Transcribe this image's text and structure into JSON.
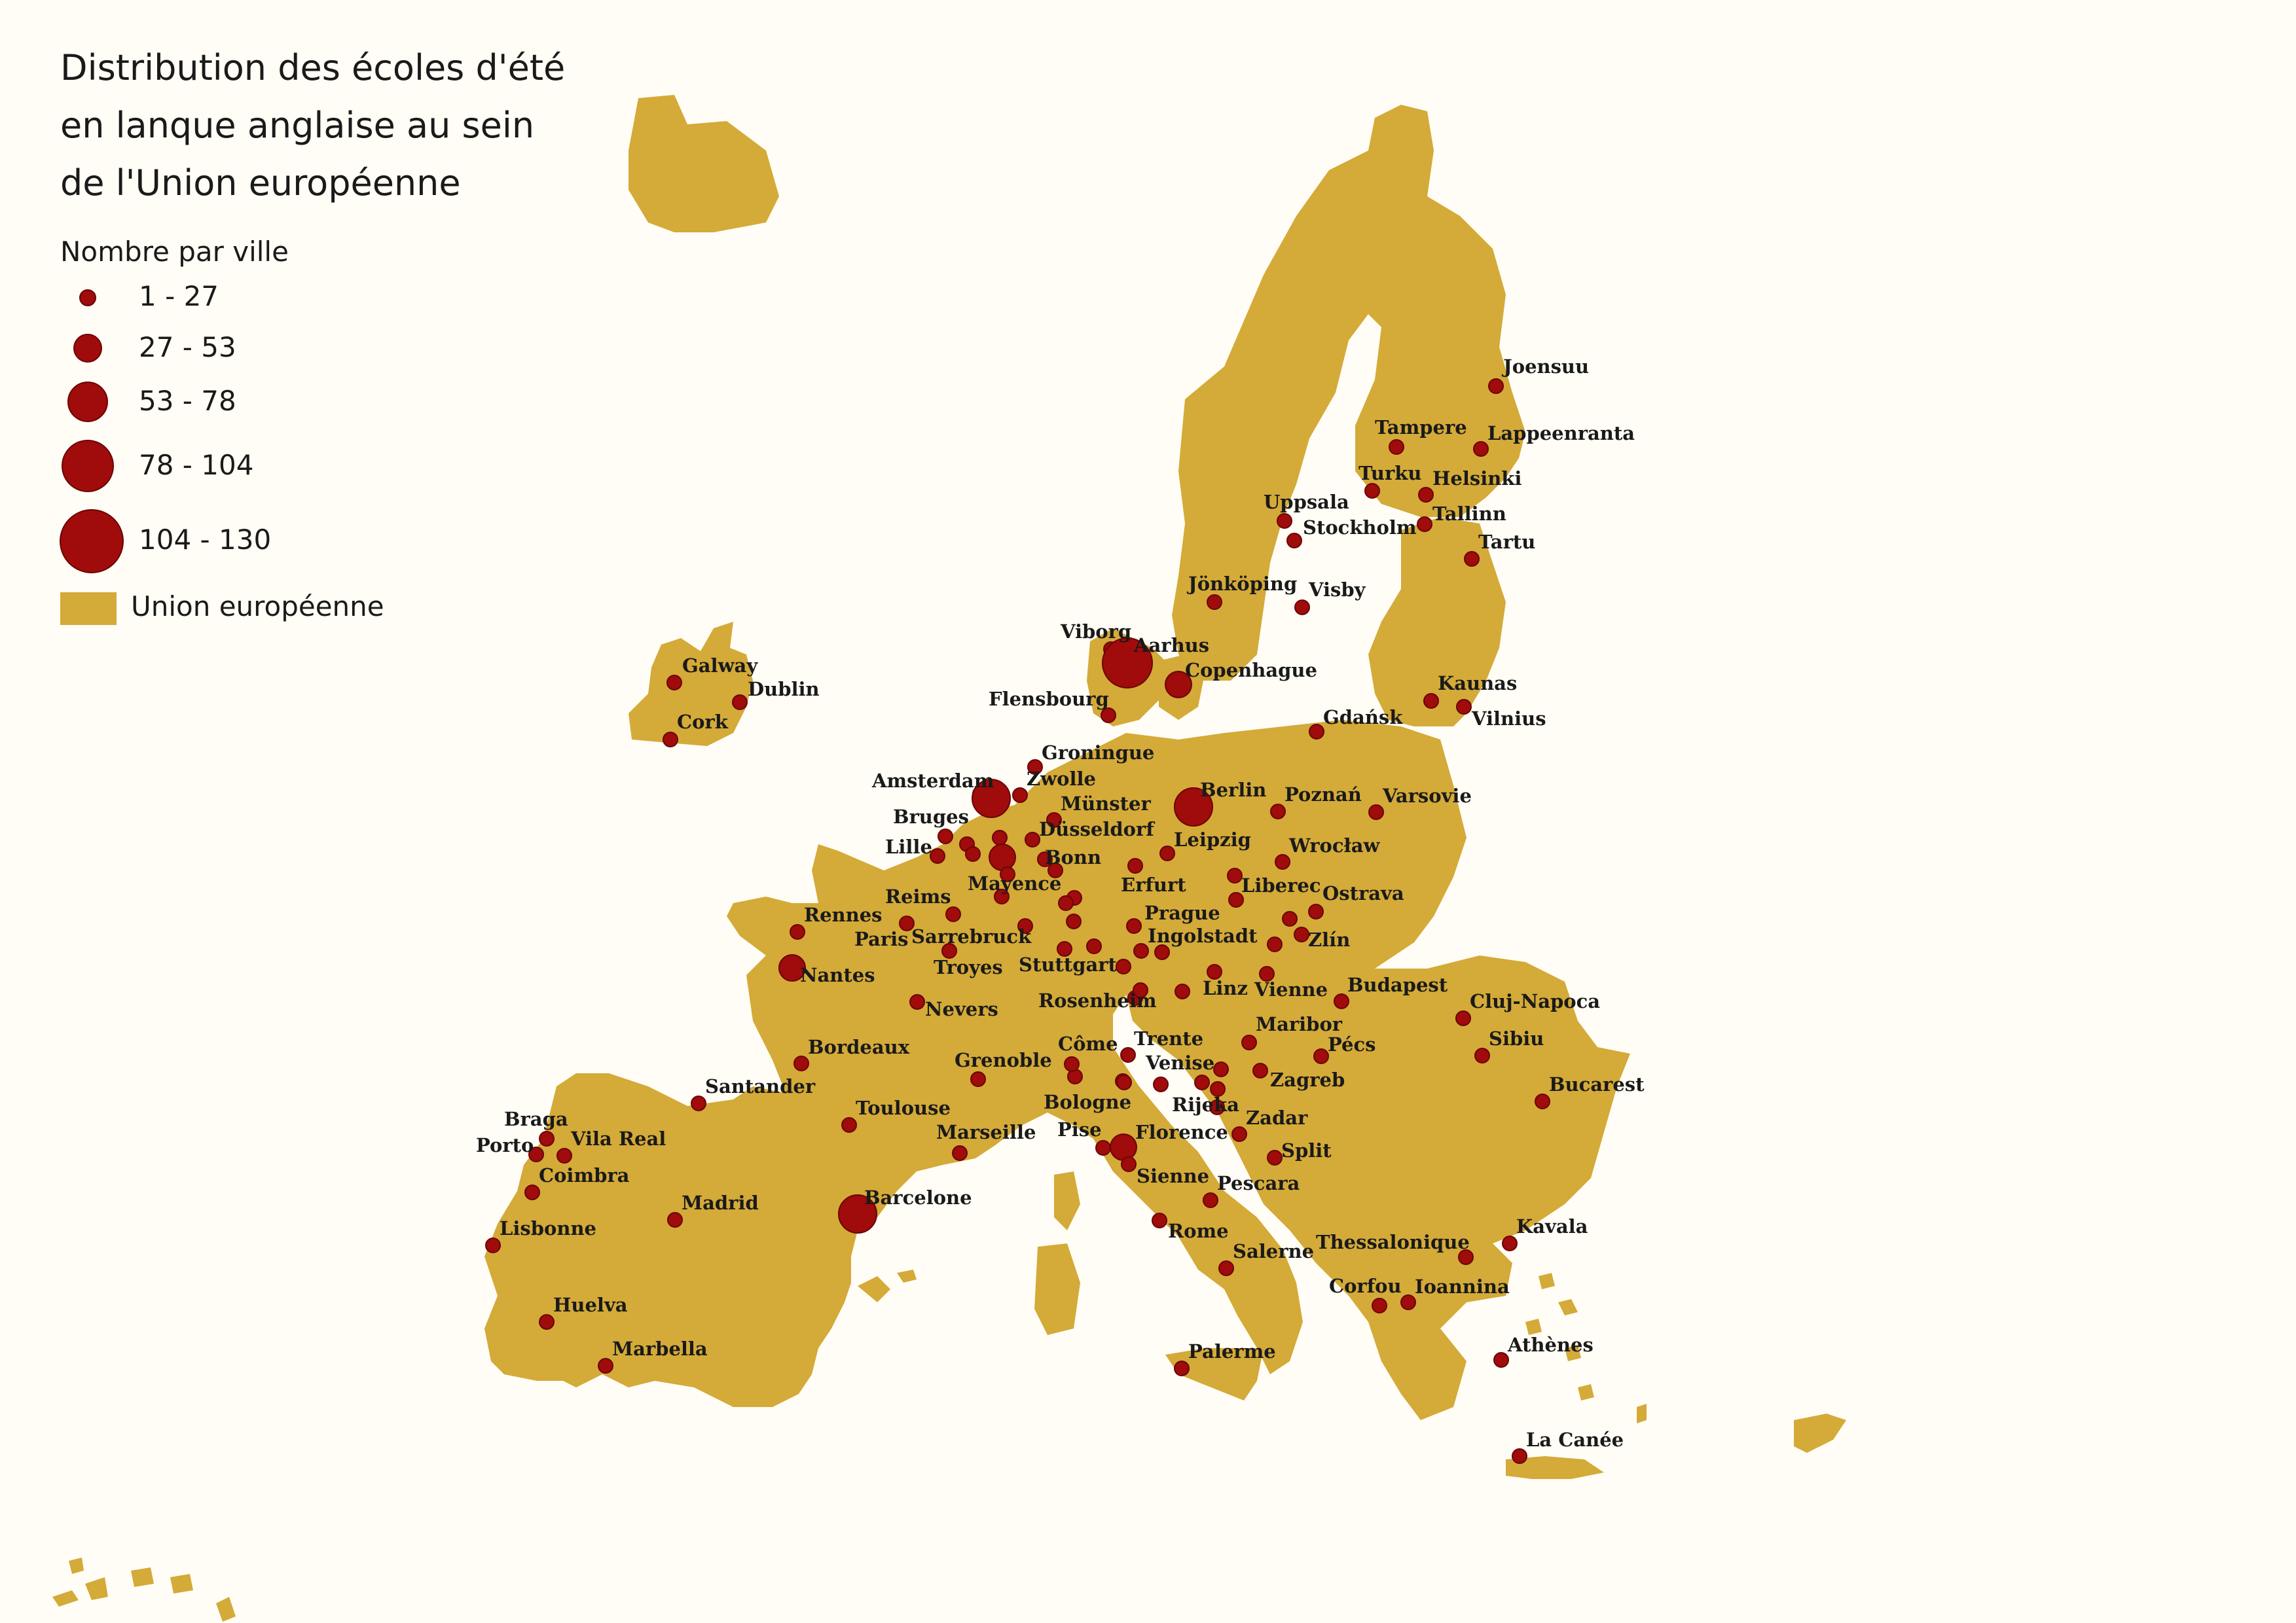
{
  "title_lines": [
    "Distribution des écoles d'été",
    "en lanque anglaise au sein",
    "de l'Union européenne"
  ],
  "legend": {
    "title": "Nombre par ville",
    "classes": [
      "1 - 27",
      "27 - 53",
      "53 - 78",
      "78 - 104",
      "104 - 130"
    ],
    "area_label": "Union européenne"
  },
  "colors": {
    "land": "#d4aa38",
    "point": "#a00b0b",
    "point_stroke": "#6a0606",
    "background": "#fffdf5"
  },
  "cities": [
    {
      "name": "Joensuu",
      "class": 0
    },
    {
      "name": "Tampere",
      "class": 0
    },
    {
      "name": "Lappeenranta",
      "class": 0
    },
    {
      "name": "Turku",
      "class": 0
    },
    {
      "name": "Helsinki",
      "class": 0
    },
    {
      "name": "Uppsala",
      "class": 0
    },
    {
      "name": "Stockholm",
      "class": 0
    },
    {
      "name": "Tallinn",
      "class": 0
    },
    {
      "name": "Tartu",
      "class": 0
    },
    {
      "name": "Jönköping",
      "class": 0
    },
    {
      "name": "Visby",
      "class": 0
    },
    {
      "name": "Viborg",
      "class": 0
    },
    {
      "name": "Aarhus",
      "class": 3
    },
    {
      "name": "Copenhague",
      "class": 1
    },
    {
      "name": "Kaunas",
      "class": 0
    },
    {
      "name": "Vilnius",
      "class": 0
    },
    {
      "name": "Galway",
      "class": 0
    },
    {
      "name": "Dublin",
      "class": 0
    },
    {
      "name": "Cork",
      "class": 0
    },
    {
      "name": "Flensbourg",
      "class": 0
    },
    {
      "name": "Gdańsk",
      "class": 0
    },
    {
      "name": "Groningue",
      "class": 0
    },
    {
      "name": "Amsterdam",
      "class": 2
    },
    {
      "name": "Zwolle",
      "class": 0
    },
    {
      "name": "Berlin",
      "class": 2
    },
    {
      "name": "Poznań",
      "class": 0
    },
    {
      "name": "Varsovie",
      "class": 0
    },
    {
      "name": "Münster",
      "class": 0
    },
    {
      "name": "Bruges",
      "class": 0
    },
    {
      "name": "Düsseldorf",
      "class": 0
    },
    {
      "name": "Lille",
      "class": 0
    },
    {
      "name": "Bonn",
      "class": 1
    },
    {
      "name": "Leipzig",
      "class": 0
    },
    {
      "name": "Wrocław",
      "class": 0
    },
    {
      "name": "Mayence",
      "class": 0
    },
    {
      "name": "Erfurt",
      "class": 0
    },
    {
      "name": "Liberec",
      "class": 0
    },
    {
      "name": "Ostrava",
      "class": 0
    },
    {
      "name": "Reims",
      "class": 0
    },
    {
      "name": "Rennes",
      "class": 0
    },
    {
      "name": "Paris",
      "class": 0
    },
    {
      "name": "Sarrebruck",
      "class": 0
    },
    {
      "name": "Prague",
      "class": 0
    },
    {
      "name": "Ingolstadt",
      "class": 0
    },
    {
      "name": "Zlín",
      "class": 0
    },
    {
      "name": "Nantes",
      "class": 1
    },
    {
      "name": "Troyes",
      "class": 0
    },
    {
      "name": "Stuttgart",
      "class": 0
    },
    {
      "name": "Budapest",
      "class": 0
    },
    {
      "name": "Linz",
      "class": 0
    },
    {
      "name": "Vienne",
      "class": 0
    },
    {
      "name": "Cluj-Napoca",
      "class": 0
    },
    {
      "name": "Rosenheim",
      "class": 0
    },
    {
      "name": "Nevers",
      "class": 0
    },
    {
      "name": "Maribor",
      "class": 0
    },
    {
      "name": "Bordeaux",
      "class": 0
    },
    {
      "name": "Côme",
      "class": 0
    },
    {
      "name": "Trente",
      "class": 0
    },
    {
      "name": "Grenoble",
      "class": 0
    },
    {
      "name": "Venise",
      "class": 0
    },
    {
      "name": "Pécs",
      "class": 0
    },
    {
      "name": "Sibiu",
      "class": 0
    },
    {
      "name": "Zagreb",
      "class": 0
    },
    {
      "name": "Santander",
      "class": 0
    },
    {
      "name": "Bucarest",
      "class": 0
    },
    {
      "name": "Bologne",
      "class": 0
    },
    {
      "name": "Toulouse",
      "class": 0
    },
    {
      "name": "Rijeka",
      "class": 0
    },
    {
      "name": "Braga",
      "class": 0
    },
    {
      "name": "Vila Real",
      "class": 0
    },
    {
      "name": "Zadar",
      "class": 0
    },
    {
      "name": "Porto",
      "class": 0
    },
    {
      "name": "Pise",
      "class": 0
    },
    {
      "name": "Florence",
      "class": 1
    },
    {
      "name": "Marseille",
      "class": 0
    },
    {
      "name": "Split",
      "class": 0
    },
    {
      "name": "Coimbra",
      "class": 0
    },
    {
      "name": "Sienne",
      "class": 0
    },
    {
      "name": "Pescara",
      "class": 0
    },
    {
      "name": "Barcelone",
      "class": 2
    },
    {
      "name": "Madrid",
      "class": 0
    },
    {
      "name": "Lisbonne",
      "class": 0
    },
    {
      "name": "Rome",
      "class": 0
    },
    {
      "name": "Kavala",
      "class": 0
    },
    {
      "name": "Thessalonique",
      "class": 0
    },
    {
      "name": "Salerne",
      "class": 0
    },
    {
      "name": "Corfou",
      "class": 0
    },
    {
      "name": "Ioannina",
      "class": 0
    },
    {
      "name": "Huelva",
      "class": 0
    },
    {
      "name": "Athènes",
      "class": 0
    },
    {
      "name": "Marbella",
      "class": 0
    },
    {
      "name": "Palerme",
      "class": 0
    },
    {
      "name": "La Canée",
      "class": 0
    }
  ]
}
